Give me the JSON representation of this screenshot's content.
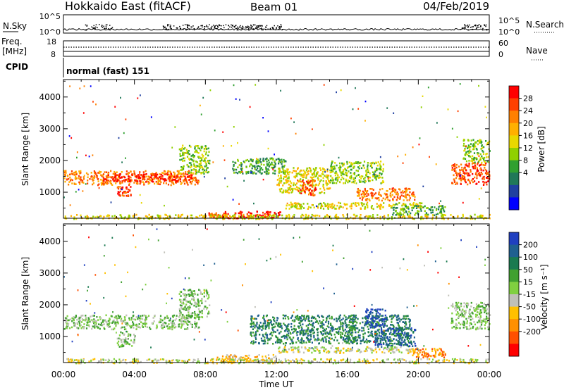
{
  "header": {
    "station": "Hokkaido East (fitACF)",
    "beam": "Beam 01",
    "date": "04/Feb/2019"
  },
  "noise_panel": {
    "left_label": "N.Sky",
    "left_ticks": [
      "10^5",
      "10^0"
    ],
    "right_ticks": [
      "10^5",
      "10^0"
    ],
    "right_label": "N.Search"
  },
  "freq_panel": {
    "left_label_line1": "Freq.",
    "left_label_line2": "[MHz]",
    "left_ticks": [
      "18",
      "8"
    ],
    "right_ticks": [
      "60",
      "0"
    ],
    "right_label": "Nave"
  },
  "cpid_panel": {
    "label": "CPID",
    "mode_text": "normal (fast) 151"
  },
  "x_axis": {
    "title": "Time UT",
    "ticks": [
      "00:00",
      "04:00",
      "08:00",
      "12:00",
      "16:00",
      "20:00",
      "00:00"
    ]
  },
  "chart_data": [
    {
      "type": "heatmap",
      "panel": "power",
      "title": "",
      "xlabel": "Time UT",
      "ylabel": "Slant Range [km]",
      "yticks": [
        "1000",
        "2000",
        "3000",
        "4000"
      ],
      "xlim_hours": [
        0,
        24
      ],
      "ylim_km": [
        180,
        4550
      ],
      "colorbar": {
        "label": "Power [dB]",
        "ticks": [
          "28",
          "24",
          "20",
          "16",
          "12",
          "8",
          "4"
        ],
        "colors": [
          "#ff0000",
          "#ff4000",
          "#ff8000",
          "#ffb000",
          "#e8d800",
          "#90d000",
          "#30a030",
          "#207858",
          "#2040a0",
          "#0000ff"
        ]
      },
      "echo_regions": [
        {
          "t0": 0.0,
          "t1": 7.6,
          "r0": 1250,
          "r1": 1700,
          "level": 7
        },
        {
          "t0": 2.2,
          "t1": 7.2,
          "r0": 1350,
          "r1": 1600,
          "level": 9
        },
        {
          "t0": 6.5,
          "t1": 8.2,
          "r0": 1600,
          "r1": 2500,
          "level": 4
        },
        {
          "t0": 3.0,
          "t1": 3.8,
          "r0": 900,
          "r1": 1200,
          "level": 8
        },
        {
          "t0": 8.8,
          "t1": 12.2,
          "r0": 200,
          "r1": 420,
          "level": 9
        },
        {
          "t0": 7.8,
          "t1": 9.2,
          "r0": 220,
          "r1": 380,
          "level": 8
        },
        {
          "t0": 9.5,
          "t1": 12.5,
          "r0": 1600,
          "r1": 2100,
          "level": 3
        },
        {
          "t0": 12.0,
          "t1": 15.0,
          "r0": 1000,
          "r1": 1800,
          "level": 5
        },
        {
          "t0": 13.2,
          "t1": 14.2,
          "r0": 900,
          "r1": 1400,
          "level": 8
        },
        {
          "t0": 15.0,
          "t1": 18.0,
          "r0": 1300,
          "r1": 2000,
          "level": 4
        },
        {
          "t0": 16.5,
          "t1": 19.8,
          "r0": 750,
          "r1": 1150,
          "level": 7
        },
        {
          "t0": 12.5,
          "t1": 20.2,
          "r0": 500,
          "r1": 700,
          "level": 5
        },
        {
          "t0": 18.5,
          "t1": 21.5,
          "r0": 300,
          "r1": 600,
          "level": 3
        },
        {
          "t0": 21.8,
          "t1": 24.0,
          "r0": 1250,
          "r1": 1950,
          "level": 8
        },
        {
          "t0": 22.5,
          "t1": 24.0,
          "r0": 1950,
          "r1": 2700,
          "level": 4
        },
        {
          "t0": 0.0,
          "t1": 24.0,
          "r0": 180,
          "r1": 320,
          "level": 5
        }
      ]
    },
    {
      "type": "heatmap",
      "panel": "velocity",
      "title": "",
      "xlabel": "Time UT",
      "ylabel": "Slant Range [km]",
      "yticks": [
        "1000",
        "2000",
        "3000",
        "4000"
      ],
      "xlim_hours": [
        0,
        24
      ],
      "ylim_km": [
        180,
        4550
      ],
      "colorbar": {
        "label": "Velocity [m s⁻¹]",
        "ticks": [
          "200",
          "100",
          "50",
          "15",
          "-15",
          "-50",
          "-100",
          "-200"
        ],
        "colors": [
          "#2040c0",
          "#206090",
          "#1a7a50",
          "#40a030",
          "#80d040",
          "#c0c0b8",
          "#ffc000",
          "#ff9000",
          "#ff5000",
          "#ff0000"
        ]
      },
      "echo_regions": [
        {
          "t0": 0.0,
          "t1": 7.6,
          "r0": 1250,
          "r1": 1700,
          "level": 5
        },
        {
          "t0": 3.0,
          "t1": 4.0,
          "r0": 700,
          "r1": 1200,
          "level": 5
        },
        {
          "t0": 6.5,
          "t1": 8.2,
          "r0": 1600,
          "r1": 2500,
          "level": 5
        },
        {
          "t0": 8.5,
          "t1": 12.0,
          "r0": 200,
          "r1": 450,
          "level": 3
        },
        {
          "t0": 10.5,
          "t1": 16.5,
          "r0": 800,
          "r1": 1700,
          "level": 7
        },
        {
          "t0": 16.0,
          "t1": 19.5,
          "r0": 800,
          "r1": 1700,
          "level": 7
        },
        {
          "t0": 17.5,
          "t1": 19.8,
          "r0": 700,
          "r1": 1300,
          "level": 8
        },
        {
          "t0": 17.0,
          "t1": 18.2,
          "r0": 1300,
          "r1": 1900,
          "level": 9
        },
        {
          "t0": 12.0,
          "t1": 20.0,
          "r0": 500,
          "r1": 700,
          "level": 4
        },
        {
          "t0": 19.5,
          "t1": 21.5,
          "r0": 350,
          "r1": 650,
          "level": 2
        },
        {
          "t0": 21.8,
          "t1": 24.0,
          "r0": 1250,
          "r1": 2100,
          "level": 5
        },
        {
          "t0": 0.0,
          "t1": 24.0,
          "r0": 180,
          "r1": 320,
          "level": 4
        }
      ]
    }
  ]
}
